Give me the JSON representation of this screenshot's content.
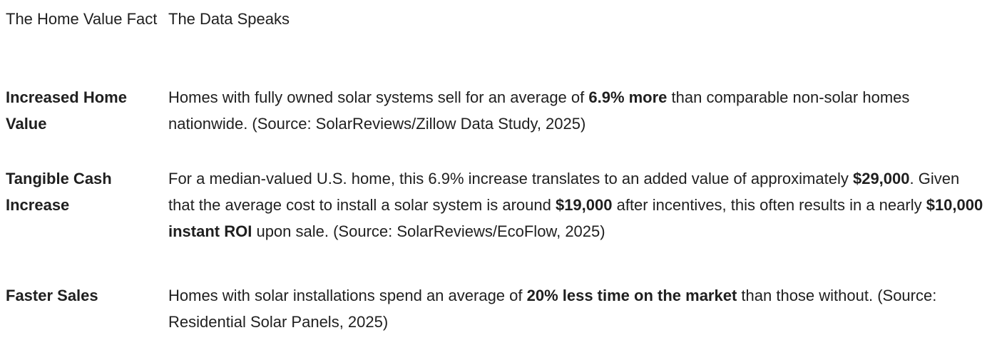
{
  "header": {
    "fact": "The Home Value Fact",
    "data": "The Data Speaks"
  },
  "rows": [
    {
      "fact": "Increased Home Value",
      "segments": [
        "Homes with fully owned solar systems sell for an average of ",
        "6.9% more",
        " than comparable non-solar homes nationwide. (Source: SolarReviews/Zillow Data Study, 2025)"
      ]
    },
    {
      "fact": "Tangible Cash Increase",
      "segments": [
        "For a median-valued U.S. home, this 6.9% increase translates to an added value of approximately ",
        "$29,000",
        ". Given that the average cost to install a solar system is around ",
        "$19,000",
        " after incentives, this often results in a nearly ",
        "$10,000 instant ROI",
        " upon sale. (Source: SolarReviews/EcoFlow, 2025)"
      ]
    },
    {
      "fact": "Faster Sales",
      "segments": [
        "Homes with solar installations spend an average of ",
        "20% less time on the market",
        " than those without. (Source: Residential Solar Panels, 2025)"
      ]
    }
  ]
}
